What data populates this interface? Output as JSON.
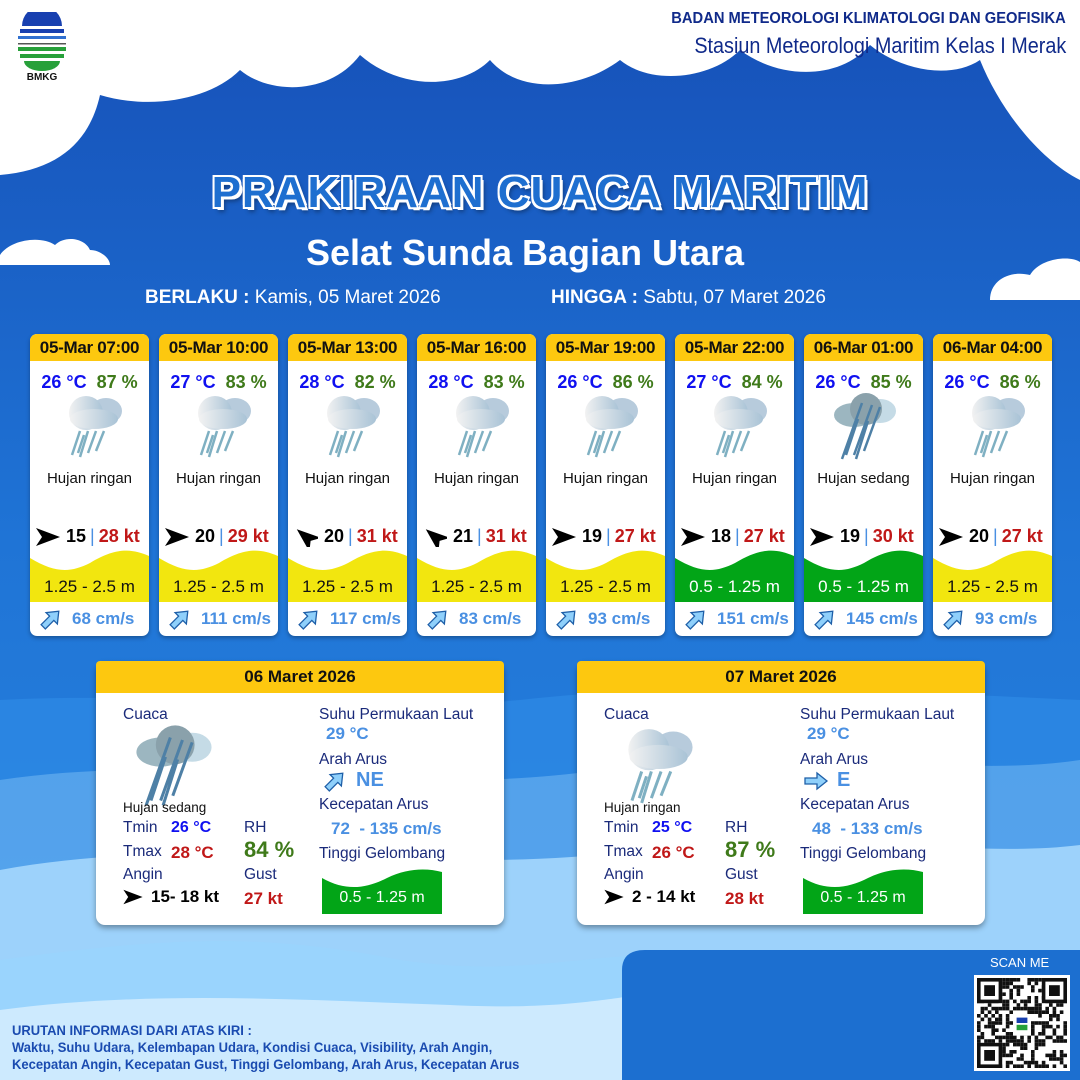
{
  "header": {
    "agency": "BADAN METEOROLOGI KLIMATOLOGI DAN GEOFISIKA",
    "station": "Stasiun Meteorologi Maritim Kelas I Merak",
    "logo_text": "BMKG"
  },
  "title": "PRAKIRAAN CUACA MARITIM",
  "area": "Selat Sunda Bagian Utara",
  "period": {
    "from_label": "BERLAKU :",
    "from_value": "Kamis, 05 Maret 2026",
    "to_label": "HINGGA :",
    "to_value": "Sabtu, 07 Maret 2026"
  },
  "colors": {
    "wave_yellow": "#f2e60f",
    "wave_green": "#02a517",
    "header_yellow": "#fdc80f",
    "temp_blue": "#1010f0",
    "rh_green": "#3f7a1a",
    "gust_red": "#c01818",
    "current_blue": "#4a90e2"
  },
  "forecasts": [
    {
      "time": "05-Mar 07:00",
      "temp": "26 °C",
      "rh": "87 %",
      "icon": "light-rain-icon",
      "condition": "Hujan ringan",
      "wind_dir": "E",
      "wind": "15",
      "gust": "28 kt",
      "wave": "1.25 - 2.5 m",
      "wave_class": "yellow",
      "current_dir": "NE",
      "current": "68 cm/s"
    },
    {
      "time": "05-Mar 10:00",
      "temp": "27 °C",
      "rh": "83 %",
      "icon": "light-rain-icon",
      "condition": "Hujan ringan",
      "wind_dir": "E",
      "wind": "20",
      "gust": "29 kt",
      "wave": "1.25 - 2.5 m",
      "wave_class": "yellow",
      "current_dir": "NE",
      "current": "111 cm/s"
    },
    {
      "time": "05-Mar 13:00",
      "temp": "28 °C",
      "rh": "82 %",
      "icon": "light-rain-icon",
      "condition": "Hujan ringan",
      "wind_dir": "NW",
      "wind": "20",
      "gust": "31 kt",
      "wave": "1.25 - 2.5 m",
      "wave_class": "yellow",
      "current_dir": "NE",
      "current": "117 cm/s"
    },
    {
      "time": "05-Mar 16:00",
      "temp": "28 °C",
      "rh": "83 %",
      "icon": "light-rain-icon",
      "condition": "Hujan ringan",
      "wind_dir": "NW",
      "wind": "21",
      "gust": "31 kt",
      "wave": "1.25 - 2.5 m",
      "wave_class": "yellow",
      "current_dir": "NE",
      "current": "83 cm/s"
    },
    {
      "time": "05-Mar 19:00",
      "temp": "26 °C",
      "rh": "86 %",
      "icon": "light-rain-icon",
      "condition": "Hujan ringan",
      "wind_dir": "E",
      "wind": "19",
      "gust": "27 kt",
      "wave": "1.25 - 2.5 m",
      "wave_class": "yellow",
      "current_dir": "NE",
      "current": "93 cm/s"
    },
    {
      "time": "05-Mar 22:00",
      "temp": "27 °C",
      "rh": "84 %",
      "icon": "light-rain-icon",
      "condition": "Hujan ringan",
      "wind_dir": "E",
      "wind": "18",
      "gust": "27 kt",
      "wave": "0.5 - 1.25 m",
      "wave_class": "green",
      "current_dir": "NE",
      "current": "151 cm/s"
    },
    {
      "time": "06-Mar 01:00",
      "temp": "26 °C",
      "rh": "85 %",
      "icon": "moderate-rain-icon",
      "condition": "Hujan sedang",
      "wind_dir": "E",
      "wind": "19",
      "gust": "30 kt",
      "wave": "0.5 - 1.25 m",
      "wave_class": "green",
      "current_dir": "NE",
      "current": "145 cm/s"
    },
    {
      "time": "06-Mar 04:00",
      "temp": "26 °C",
      "rh": "86 %",
      "icon": "light-rain-icon",
      "condition": "Hujan ringan",
      "wind_dir": "E",
      "wind": "20",
      "gust": "27 kt",
      "wave": "1.25 - 2.5 m",
      "wave_class": "yellow",
      "current_dir": "NE",
      "current": "93 cm/s"
    }
  ],
  "labels": {
    "weather": "Cuaca",
    "sst": "Suhu Permukaan Laut",
    "current_dir": "Arah Arus",
    "current_speed": "Kecepatan Arus",
    "wave": "Tinggi Gelombang",
    "tmin": "Tmin",
    "tmax": "Tmax",
    "rh": "RH",
    "wind": "Angin",
    "gust": "Gust"
  },
  "daily": [
    {
      "date": "06 Maret 2026",
      "icon": "moderate-rain-icon",
      "condition": "Hujan sedang",
      "tmin": "26 °C",
      "tmax": "28 °C",
      "rh": "84 %",
      "wind_dir": "E",
      "wind": "15- 18 kt",
      "gust": "27 kt",
      "sst": "29 °C",
      "current_dir": "NE",
      "current_speed": "72  - 135 cm/s",
      "wave": "0.5 - 1.25 m"
    },
    {
      "date": "07 Maret 2026",
      "icon": "light-rain-icon",
      "condition": "Hujan ringan",
      "tmin": "25 °C",
      "tmax": "26 °C",
      "rh": "87 %",
      "wind_dir": "E",
      "wind": "2  - 14 kt",
      "gust": "28 kt",
      "sst": "29 °C",
      "current_dir": "E",
      "current_speed": "48  - 133 cm/s",
      "wave": "0.5 - 1.25 m"
    }
  ],
  "footer": {
    "legend_title": "URUTAN INFORMASI DARI ATAS KIRI :",
    "legend_line1": "Waktu, Suhu Udara, Kelembapan Udara, Kondisi Cuaca, Visibility, Arah Angin,",
    "legend_line2": "Kecepatan Angin, Kecepatan Gust, Tinggi Gelombang, Arah Arus, Kecepatan Arus",
    "scan_label": "SCAN ME"
  }
}
